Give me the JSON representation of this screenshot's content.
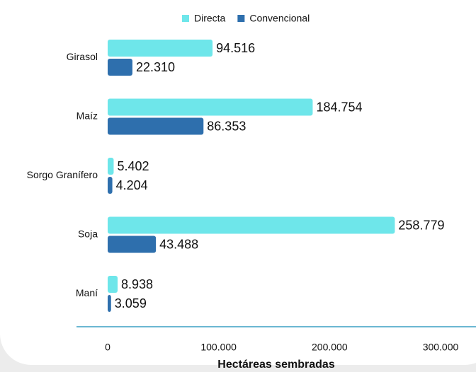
{
  "chart_data": {
    "type": "bar",
    "orientation": "horizontal",
    "x_label": "Hectáreas sembradas",
    "categories": [
      "Girasol",
      "Maíz",
      "Sorgo Granífero",
      "Soja",
      "Maní"
    ],
    "series": [
      {
        "name": "Directa",
        "color": "#6ee6ea",
        "values": [
          94516,
          184754,
          5402,
          258779,
          8938
        ],
        "value_labels": [
          "94.516",
          "184.754",
          "5.402",
          "258.779",
          "8.938"
        ]
      },
      {
        "name": "Convencional",
        "color": "#2e6fad",
        "values": [
          22310,
          86353,
          4204,
          43488,
          3059
        ],
        "value_labels": [
          "22.310",
          "86.353",
          "4.204",
          "43.488",
          "3.059"
        ]
      }
    ],
    "xlim": [
      0,
      300000
    ],
    "xticks": [
      0,
      {
        "value": 100000,
        "label": "100.000"
      },
      {
        "value": 200000,
        "label": "200.000"
      },
      {
        "value": 300000,
        "label": "300.000"
      }
    ],
    "legend": "top"
  }
}
